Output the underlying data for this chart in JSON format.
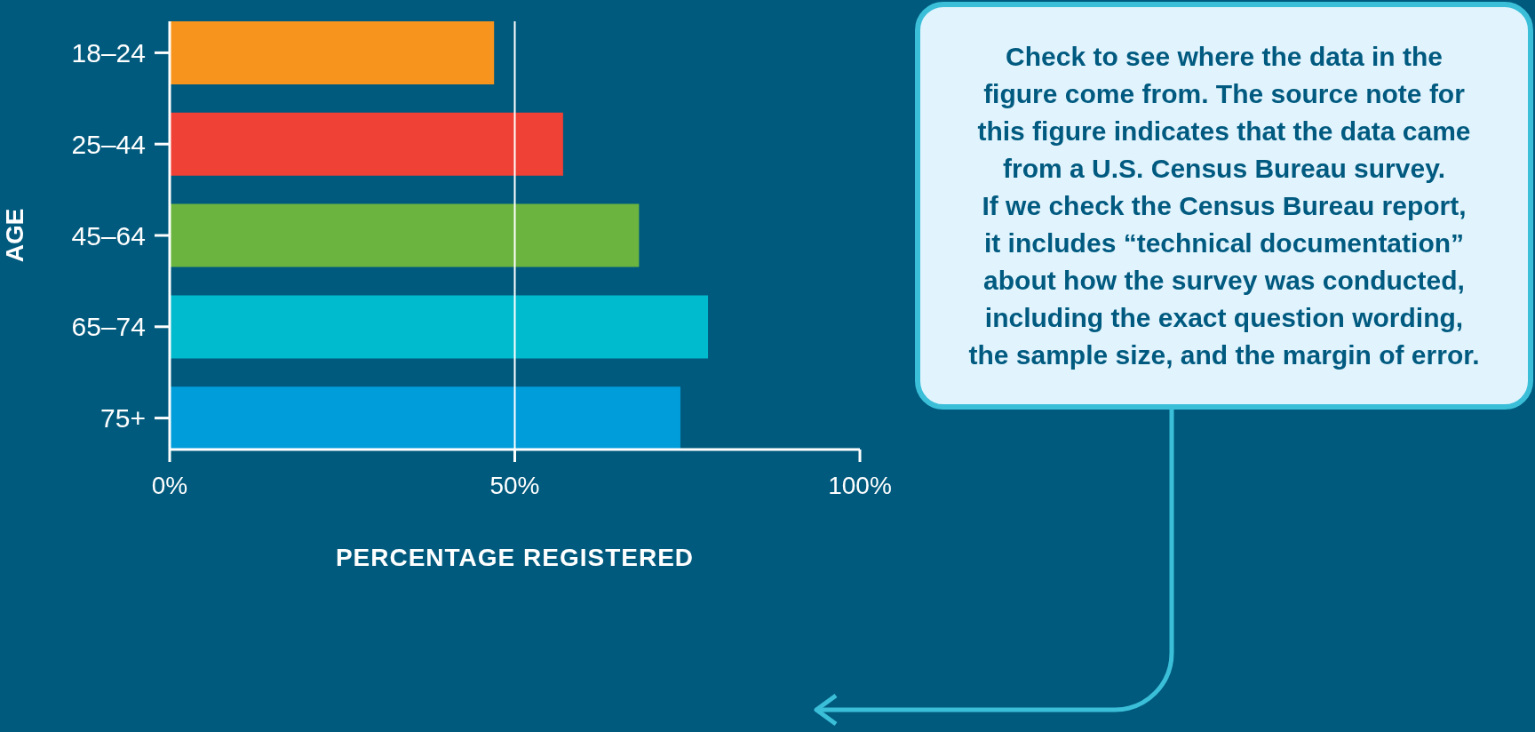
{
  "chart_data": {
    "type": "bar",
    "orientation": "horizontal",
    "categories": [
      "18–24",
      "25–44",
      "45–64",
      "65–74",
      "75+"
    ],
    "values": [
      47,
      57,
      68,
      78,
      74
    ],
    "colors": [
      "#f7941d",
      "#ef4136",
      "#6bb43f",
      "#00bace",
      "#009ddb"
    ],
    "xlabel": "PERCENTAGE REGISTERED",
    "ylabel": "AGE",
    "xlim": [
      0,
      100
    ],
    "xticks": [
      {
        "value": 0,
        "label": "0%"
      },
      {
        "value": 50,
        "label": "50%"
      },
      {
        "value": 100,
        "label": "100%"
      }
    ],
    "ref_lines": [
      {
        "axis": "x",
        "value": 50,
        "color": "#ffffff"
      }
    ],
    "annotations": [
      "Check to see where the data in the\nfigure come from. The source note for\nthis figure indicates that the data came\nfrom a U.S. Census Bureau survey.\nIf we check the Census Bureau report,\nit includes “technical documentation”\nabout how the survey was conducted,\nincluding the exact question wording,\nthe sample size, and the margin of error."
    ]
  }
}
